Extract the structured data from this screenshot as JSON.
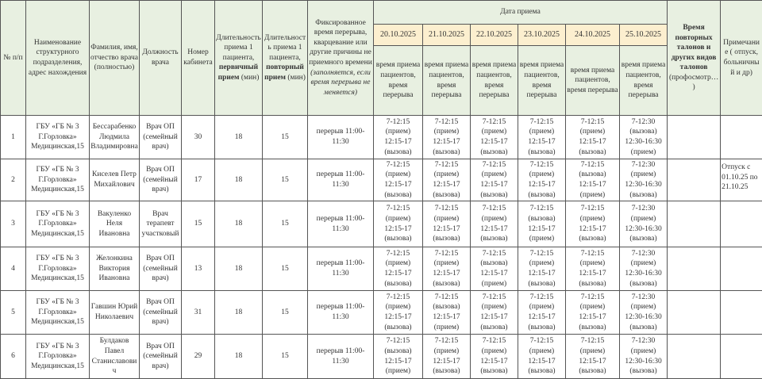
{
  "header": {
    "num": "№ п/п",
    "unit": "Наименование структурного подразделения, адрес нахождения",
    "name": "Фамилия, имя, отчество врача (полностью)",
    "position": "Должность врача",
    "cabinet": "Номер кабинета",
    "primary_pre": "Длительность приема 1 пациента,",
    "primary_bold": "первичный прием",
    "primary_post": "(мин)",
    "repeat_pre": "Длительность приема 1 пациента,",
    "repeat_bold": "повторный прием",
    "repeat_post": "(мин)",
    "break_main": "Фиксированное время перерыва, кварцевание или другие причины не приемного времени",
    "break_italic": "(заполняется, если время перерыва не меняется)",
    "date_group": "Дата  приема",
    "dates": [
      "20.10.2025",
      "21.10.2025",
      "22.10.2025",
      "23.10.2025",
      "24.10.2025",
      "25.10.2025"
    ],
    "date_sub": "время приема пациентов, время перерыва",
    "talons_bold": "Время повторных талонов и других видов талонов",
    "talons_post": "(профосмотр…)",
    "note": "Примечание ( отпуск, больничный и др)"
  },
  "rows": [
    {
      "num": "1",
      "unit": "ГБУ «ГБ № 3 Г.Горловка» Медицинская,15",
      "name": "Бессарабенко Людмила Владимировна",
      "position": "Врач ОП (семейный врач)",
      "cabinet": "30",
      "primary": "18",
      "repeat": "15",
      "break": "перерыв 11:00-11:30",
      "schedule": [
        "7-12:15\n(прием)\n12:15-17\n(вызова)",
        "7-12:15\n(прием)\n12:15-17\n(вызова)",
        "7-12:15\n(прием)\n12:15-17\n(вызова)",
        "7-12:15\n(прием)\n12:15-17\n(вызова)",
        "7-12:15\n(прием)\n12:15-17\n(вызова)",
        "7-12:30\n(вызова)\n12:30-16:30\n(прием)"
      ],
      "talons": "",
      "note": ""
    },
    {
      "num": "2",
      "unit": "ГБУ «ГБ № 3 Г.Горловка» Медицинская,15",
      "name": "Киселев Петр Михайлович",
      "position": "Врач ОП (семейный врач)",
      "cabinet": "17",
      "primary": "18",
      "repeat": "15",
      "break": "перерыв 11:00-11:30",
      "schedule": [
        "7-12:15\n(прием)\n12:15-17\n(вызова)",
        "7-12:15\n(прием)\n12:15-17\n(вызова)",
        "7-12:15\n(прием)\n12:15-17\n(вызова)",
        "7-12:15\n(прием)\n12:15-17\n(вызова)",
        "7-12:15\n(вызова)\n12:15-17\n(прием)",
        "7-12:30\n(прием)\n12:30-16:30\n(вызова)"
      ],
      "talons": "",
      "note": "Отпуск с 01.10.25 по 21.10.25"
    },
    {
      "num": "3",
      "unit": "ГБУ «ГБ № 3 Г.Горловка» Медицинская,15",
      "name": "Вакуленко Неля Ивановна",
      "position": "Врач терапевт участковый",
      "cabinet": "15",
      "primary": "18",
      "repeat": "15",
      "break": "перерыв 11:00-11:30",
      "schedule": [
        "7-12:15\n(прием)\n12:15-17\n(вызова)",
        "7-12:15\n(прием)\n12:15-17\n(вызова)",
        "7-12:15\n(прием)\n12:15-17\n(вызова)",
        "7-12:15\n(вызова)\n12:15-17\n(прием)",
        "7-12:15\n(прием)\n12:15-17\n(вызова)",
        "7-12:30\n(прием)\n12:30-16:30\n(вызова)"
      ],
      "talons": "",
      "note": ""
    },
    {
      "num": "4",
      "unit": "ГБУ «ГБ № 3 Г.Горловка» Медицинская,15",
      "name": "Желонкина Виктория Ивановна",
      "position": "Врач ОП (семейный врач)",
      "cabinet": "13",
      "primary": "18",
      "repeat": "15",
      "break": "перерыв 11:00-11:30",
      "schedule": [
        "7-12:15\n(прием)\n12:15-17\n(вызова)",
        "7-12:15\n(прием)\n12:15-17\n(вызова)",
        "7-12:15\n(вызова)\n12:15-17\n(прием)",
        "7-12:15\n(прием)\n12:15-17\n(вызова)",
        "7-12:15\n(прием)\n12:15-17\n(вызова)",
        "7-12:30\n(прием)\n12:30-16:30\n(вызова)"
      ],
      "talons": "",
      "note": ""
    },
    {
      "num": "5",
      "unit": "ГБУ «ГБ № 3 Г.Горловка» Медицинская,15",
      "name": "Гавшин Юрий Николаевич",
      "position": "Врач ОП (семейный врач)",
      "cabinet": "31",
      "primary": "18",
      "repeat": "15",
      "break": "перерыв 11:00-11:30",
      "schedule": [
        "7-12:15\n(прием)\n12:15-17\n(вызова)",
        "7-12:15\n(вызова)\n12:15-17\n(прием)",
        "7-12:15\n(прием)\n12:15-17\n(вызова)",
        "7-12:15\n(прием)\n12:15-17\n(вызова)",
        "7-12:15\n(прием)\n12:15-17\n(вызова)",
        "7-12:30\n(прием)\n12:30-16:30\n(вызова)"
      ],
      "talons": "",
      "note": ""
    },
    {
      "num": "6",
      "unit": "ГБУ «ГБ № 3 Г.Горловка» Медицинская,15",
      "name": "Булдаков Павел Станиславович",
      "position": "Врач ОП (семейный врач)",
      "cabinet": "29",
      "primary": "18",
      "repeat": "15",
      "break": "перерыв 11:00-11:30",
      "schedule": [
        "7-12:15\n(вызова)\n12:15-17\n(прием)",
        "7-12:15\n(прием)\n12:15-17\n(вызова)",
        "7-12:15\n(прием)\n12:15-17\n(вызова)",
        "7-12:15\n(прием)\n12:15-17\n(вызова)",
        "7-12:15\n(прием)\n12:15-17\n(вызова)",
        "7-12:30\n(прием)\n12:30-16:30\n(вызова)"
      ],
      "talons": "",
      "note": ""
    }
  ]
}
